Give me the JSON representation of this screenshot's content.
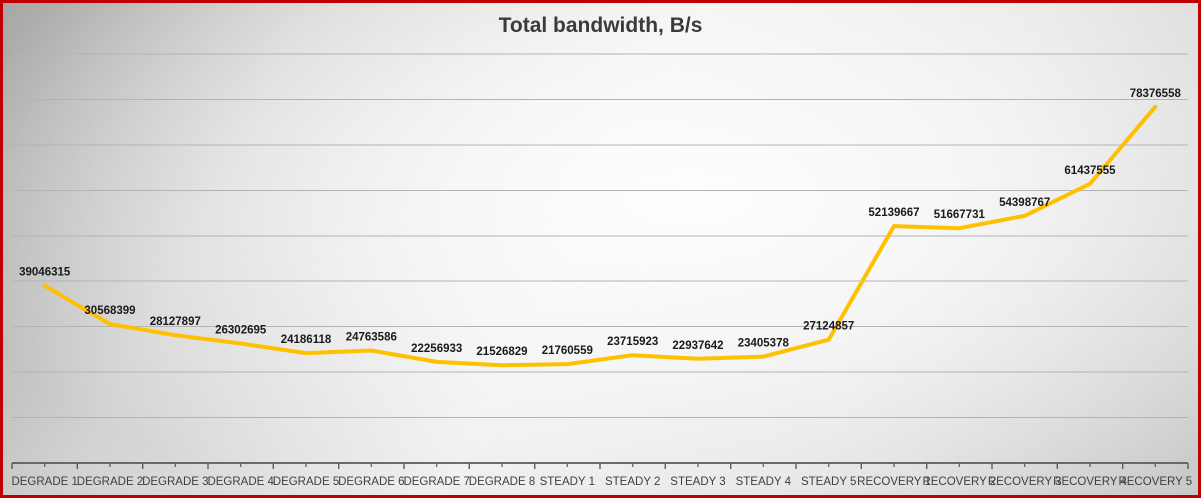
{
  "window": {
    "border_color": "#C00000"
  },
  "chart_data": {
    "type": "line",
    "title": "Total bandwidth, B/s",
    "categories": [
      "DEGRADE 1",
      "DEGRADE 2",
      "DEGRADE 3",
      "DEGRADE 4",
      "DEGRADE 5",
      "DEGRADE 6",
      "DEGRADE 7",
      "DEGRADE 8",
      "STEADY 1",
      "STEADY 2",
      "STEADY 3",
      "STEADY 4",
      "STEADY 5",
      "RECOVERY 1",
      "RECOVERY 2",
      "RECOVERY 3",
      "RECOVERY 4",
      "RECOVERY 5"
    ],
    "values": [
      39046315,
      30568399,
      28127897,
      26302695,
      24186118,
      24763586,
      22256933,
      21526829,
      21760559,
      23715923,
      22937642,
      23405378,
      27124857,
      52139667,
      51667731,
      54398767,
      61437555,
      78376558
    ],
    "series": [
      {
        "name": "Total bandwidth, B/s",
        "values": [
          39046315,
          30568399,
          28127897,
          26302695,
          24186118,
          24763586,
          22256933,
          21526829,
          21760559,
          23715923,
          22937642,
          23405378,
          27124857,
          52139667,
          51667731,
          54398767,
          61437555,
          78376558
        ]
      }
    ],
    "xlabel": "",
    "ylabel": "",
    "ylim": [
      0,
      90000000
    ],
    "gridline_interval": 10000000,
    "grid": true,
    "legend_position": "none",
    "data_labels_position": "above",
    "series_color": "#FFC000"
  },
  "style": {
    "title_color": "#3b3b3b",
    "data_label_color": "#1a1a1a",
    "axis_label_color": "#3f3f3f",
    "gridline_color": "#b3b3b3",
    "axis_color": "#5a5a5a"
  }
}
